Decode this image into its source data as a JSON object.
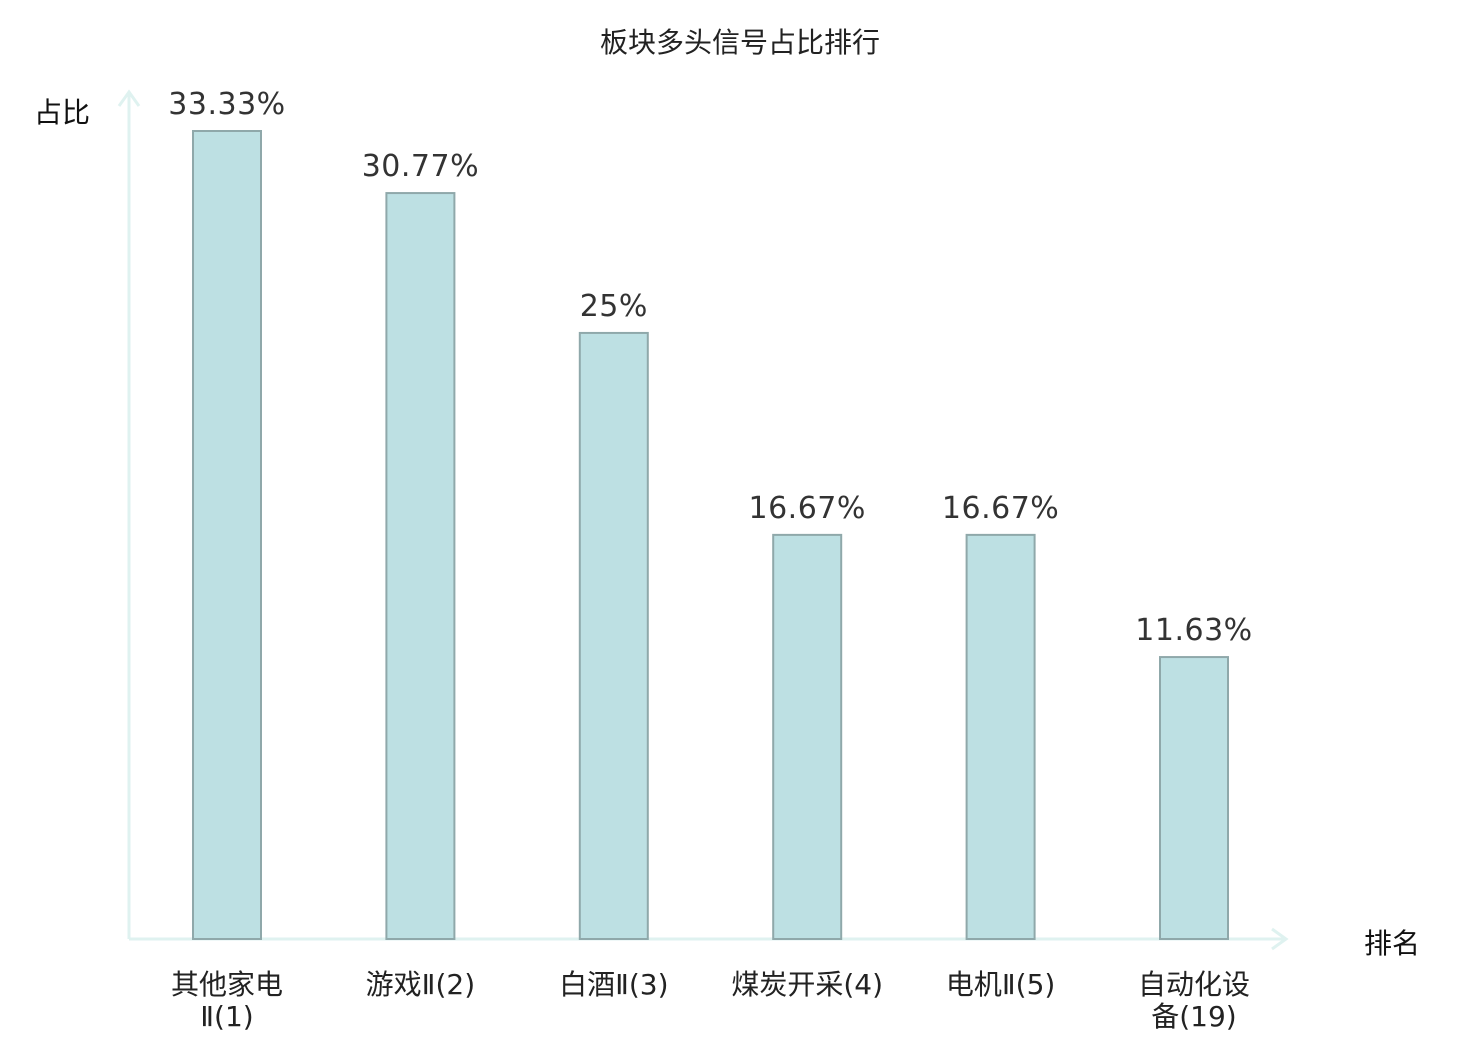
{
  "chart_data": {
    "type": "bar",
    "title": "板块多头信号占比排行",
    "xlabel": "排名",
    "ylabel": "占比",
    "categories": [
      [
        "其他家电",
        "Ⅱ(1)"
      ],
      [
        "游戏Ⅱ(2)"
      ],
      [
        "白酒Ⅱ(3)"
      ],
      [
        "煤炭开采(4)"
      ],
      [
        "电机Ⅱ(5)"
      ],
      [
        "自动化设",
        "备(19)"
      ]
    ],
    "values": [
      33.33,
      30.77,
      25,
      16.67,
      16.67,
      11.63
    ],
    "value_labels": [
      "33.33%",
      "30.77%",
      "25%",
      "16.67%",
      "16.67%",
      "11.63%"
    ],
    "highlight_index": 5,
    "ylim": [
      0,
      35
    ],
    "grid": false,
    "legend": "none",
    "colors": {
      "bar_fill": "#bde0e3",
      "bar_stroke": "#8fa8aa",
      "axis": "#dff2f0",
      "highlight_text": "#e02020"
    }
  }
}
